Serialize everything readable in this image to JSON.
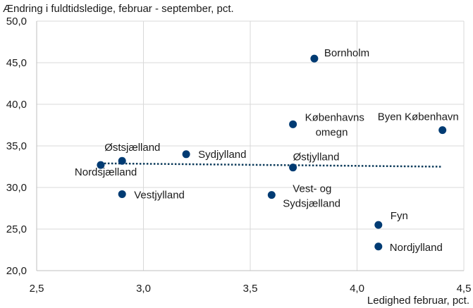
{
  "chart_data": {
    "type": "scatter",
    "title": "",
    "ylabel": "Ændring i fuldtidsledige, februar - september, pct.",
    "xlabel": "Ledighed februar, pct.",
    "xlim": [
      2.5,
      4.5
    ],
    "ylim": [
      20.0,
      50.0
    ],
    "x_ticks": [
      "2,5",
      "3,0",
      "3,5",
      "4,0",
      "4,5"
    ],
    "y_ticks": [
      "20,0",
      "25,0",
      "30,0",
      "35,0",
      "40,0",
      "45,0",
      "50,0"
    ],
    "grid": "vertical and horizontal",
    "marker_color": "#003b73",
    "trendline": {
      "style": "dotted",
      "color": "#0b3a5a",
      "x": [
        2.8,
        4.4
      ],
      "y": [
        32.9,
        32.5
      ]
    },
    "points": [
      {
        "label": "Nordsjælland",
        "x": 2.8,
        "y": 32.7
      },
      {
        "label": "Østsjælland",
        "x": 2.9,
        "y": 33.2
      },
      {
        "label": "Vestjylland",
        "x": 2.9,
        "y": 29.2
      },
      {
        "label": "Sydjylland",
        "x": 3.2,
        "y": 34.0
      },
      {
        "label": "Vest- og Sydsjælland",
        "x": 3.6,
        "y": 29.1
      },
      {
        "label": "Københavns omegn",
        "x": 3.7,
        "y": 37.6
      },
      {
        "label": "Østjylland",
        "x": 3.7,
        "y": 32.4
      },
      {
        "label": "Bornholm",
        "x": 3.8,
        "y": 45.5
      },
      {
        "label": "Fyn",
        "x": 4.1,
        "y": 25.5
      },
      {
        "label": "Nordjylland",
        "x": 4.1,
        "y": 22.9
      },
      {
        "label": "Byen København",
        "x": 4.4,
        "y": 36.9
      }
    ]
  }
}
